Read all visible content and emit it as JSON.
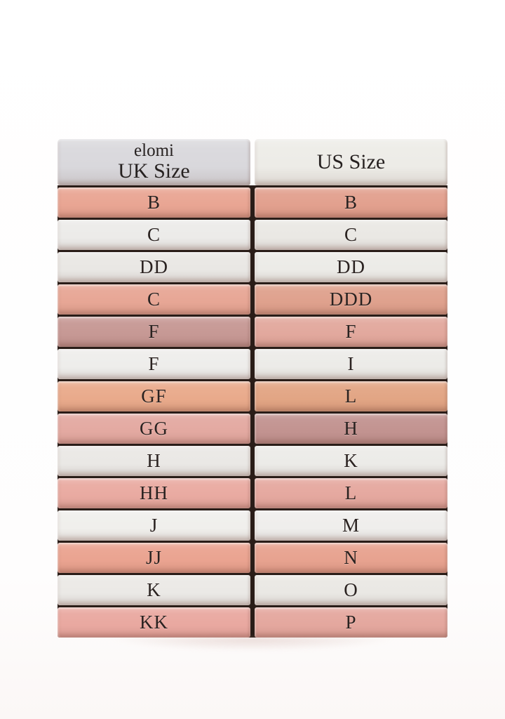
{
  "page": {
    "background": "#fefefe",
    "shadow_tint": "#be8c82"
  },
  "table": {
    "header": {
      "left": {
        "brand": "elomi",
        "label": "UK Size",
        "color": "#d9d8dc"
      },
      "right": {
        "label": "US Size",
        "color": "#edece7"
      }
    },
    "gap_color": "#2a1d18",
    "rows": [
      {
        "uk": "B",
        "us": "B",
        "uk_color": "#e9a593",
        "us_color": "#e2a08e"
      },
      {
        "uk": "C",
        "us": "C",
        "uk_color": "#ecebe9",
        "us_color": "#eae8e4"
      },
      {
        "uk": "DD",
        "us": "DD",
        "uk_color": "#e9e7e4",
        "us_color": "#ecebe7"
      },
      {
        "uk": "C",
        "us": "DDD",
        "uk_color": "#e7a695",
        "us_color": "#dfa18d"
      },
      {
        "uk": "F",
        "us": "F",
        "uk_color": "#c69894",
        "us_color": "#e2a89d"
      },
      {
        "uk": "F",
        "us": "I",
        "uk_color": "#eeedeb",
        "us_color": "#ecebe8"
      },
      {
        "uk": "GF",
        "us": "L",
        "uk_color": "#e9aa8b",
        "us_color": "#e2a584"
      },
      {
        "uk": "GG",
        "us": "H",
        "uk_color": "#e3a9a1",
        "us_color": "#c29390"
      },
      {
        "uk": "H",
        "us": "K",
        "uk_color": "#eae8e5",
        "us_color": "#ecebe8"
      },
      {
        "uk": "HH",
        "us": "L",
        "uk_color": "#e9aaa1",
        "us_color": "#e5a89f"
      },
      {
        "uk": "J",
        "us": "M",
        "uk_color": "#f0efec",
        "us_color": "#efeeec"
      },
      {
        "uk": "JJ",
        "us": "N",
        "uk_color": "#eaa390",
        "us_color": "#e7a28f"
      },
      {
        "uk": "K",
        "us": "O",
        "uk_color": "#ebe9e6",
        "us_color": "#eae8e4"
      },
      {
        "uk": "KK",
        "us": "P",
        "uk_color": "#e9a8a0",
        "us_color": "#e4a79e"
      }
    ]
  },
  "chart_data": {
    "type": "table",
    "title": "elomi",
    "columns": [
      "UK Size",
      "US Size"
    ],
    "rows": [
      [
        "B",
        "B"
      ],
      [
        "C",
        "C"
      ],
      [
        "DD",
        "DD"
      ],
      [
        "C",
        "DDD"
      ],
      [
        "F",
        "F"
      ],
      [
        "F",
        "I"
      ],
      [
        "GF",
        "L"
      ],
      [
        "GG",
        "H"
      ],
      [
        "H",
        "K"
      ],
      [
        "HH",
        "L"
      ],
      [
        "J",
        "M"
      ],
      [
        "JJ",
        "N"
      ],
      [
        "K",
        "O"
      ],
      [
        "KK",
        "P"
      ]
    ]
  }
}
